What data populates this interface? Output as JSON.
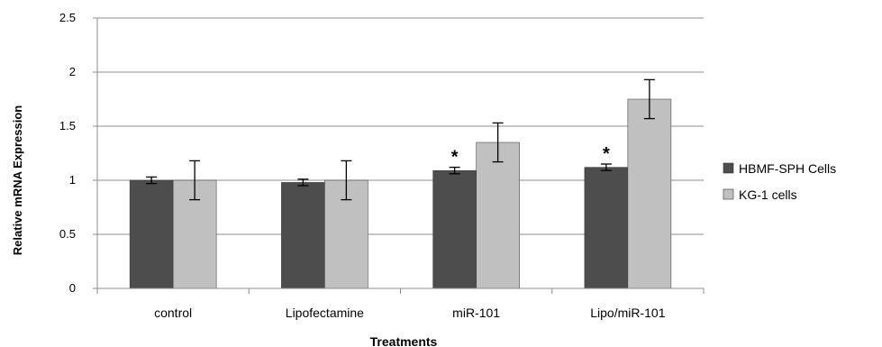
{
  "chart_data": {
    "type": "bar",
    "title": "",
    "xlabel": "Treatments",
    "ylabel": "Relative mRNA Expression",
    "ylim": [
      0,
      2.5
    ],
    "yticks": [
      {
        "value": 0,
        "label": "0"
      },
      {
        "value": 0.5,
        "label": "0.5"
      },
      {
        "value": 1,
        "label": "1"
      },
      {
        "value": 1.5,
        "label": "1.5"
      },
      {
        "value": 2,
        "label": "2"
      },
      {
        "value": 2.5,
        "label": "2.5"
      }
    ],
    "grid": true,
    "legend_position": "right",
    "categories": [
      "control",
      "Lipofectamine",
      "miR-101",
      "Lipo/miR-101"
    ],
    "series": [
      {
        "name": "HBMF-SPH Cells",
        "color": "#4d4d4d",
        "values": [
          1.0,
          0.98,
          1.09,
          1.12
        ],
        "errors": [
          0.03,
          0.03,
          0.03,
          0.03
        ],
        "significance": [
          "",
          "",
          "*",
          "*"
        ]
      },
      {
        "name": "KG-1 cells",
        "color": "#c0c0c0",
        "values": [
          1.0,
          1.0,
          1.35,
          1.75
        ],
        "errors": [
          0.18,
          0.18,
          0.18,
          0.18
        ],
        "significance": [
          "",
          "",
          "",
          ""
        ]
      }
    ]
  }
}
